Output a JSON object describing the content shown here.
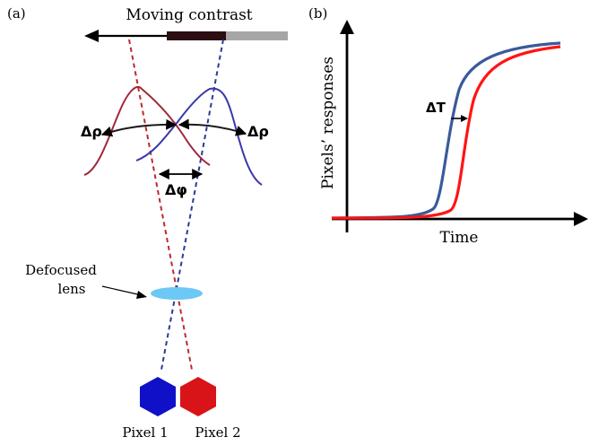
{
  "panel_a": {
    "label": "(a)",
    "title": "Moving contrast",
    "delta_rho_left": "Δρ",
    "delta_rho_right": "Δρ",
    "delta_phi": "Δφ",
    "lens_label_line1": "Defocused",
    "lens_label_line2": "lens",
    "pixel1_label": "Pixel 1",
    "pixel2_label": "Pixel 2"
  },
  "panel_b": {
    "label": "(b)",
    "ylabel": "Pixels’ responses",
    "xlabel": "Time",
    "delta_t": "ΔT"
  },
  "colors": {
    "pixel1": "#1010c8",
    "pixel2": "#d81418",
    "curve_red_dark": "#a0283a",
    "curve_blue_dark": "#3a38a8",
    "response_blue": "#3a5a9a",
    "response_red": "#ff1414",
    "lens": "#6cc8f4",
    "bar_dark": "#2a0e12",
    "bar_gray": "#a6a6a6"
  }
}
